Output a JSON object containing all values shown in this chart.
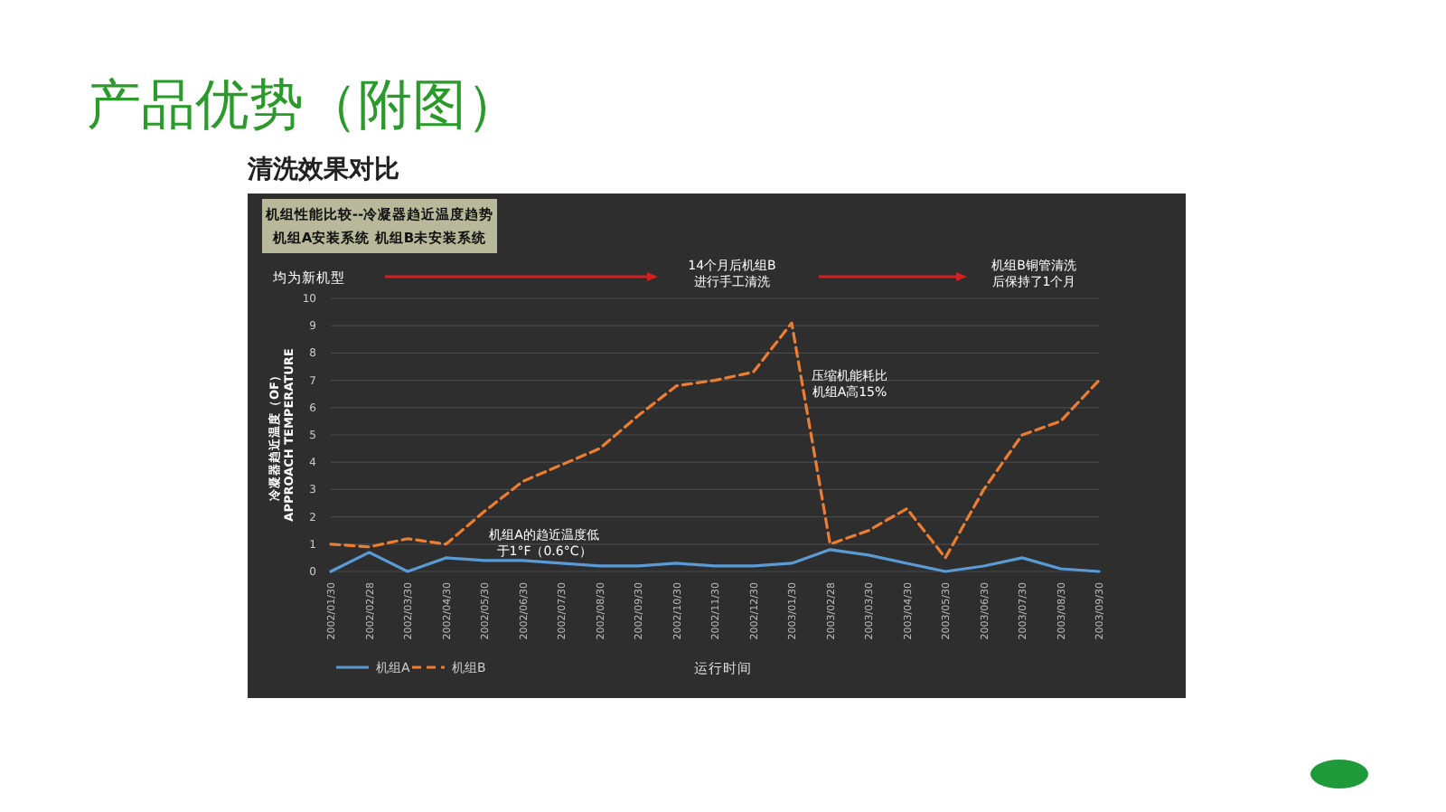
{
  "chart_data": {
    "type": "line",
    "title": "产品优势（附图）",
    "subtitle": "清洗效果对比",
    "xlabel": "运行时间",
    "ylabel": "冷凝器趋近温度（OF）\nAPPROACH TEMPERATURE",
    "annotations": [
      "机组性能比较--冷凝器趋近温度趋势",
      "机组A安装系统  机组B未安装系统",
      "均为新机型",
      "14个月后机组B进行手工清洗",
      "机组B铜管清洗后保持了1个月",
      "压缩机能耗比机组A高15%",
      "机组A的趋近温度低于1°F（0.6°C）"
    ],
    "categories": [
      "2002/01/30",
      "2002/02/28",
      "2002/03/30",
      "2002/04/30",
      "2002/05/30",
      "2002/06/30",
      "2002/07/30",
      "2002/08/30",
      "2002/09/30",
      "2002/10/30",
      "2002/11/30",
      "2002/12/30",
      "2003/01/30",
      "2003/02/28",
      "2003/03/30",
      "2003/04/30",
      "2003/05/30",
      "2003/06/30",
      "2003/07/30",
      "2003/08/30",
      "2003/09/30"
    ],
    "series": [
      {
        "name": "机组A",
        "color": "#5b9bd5",
        "line_style": "solid",
        "values": [
          0,
          0.7,
          0,
          0.5,
          0.4,
          0.4,
          0.3,
          0.2,
          0.2,
          0.3,
          0.2,
          0.2,
          0.3,
          0.8,
          0.6,
          0.3,
          0,
          0.2,
          0.5,
          0.1,
          0
        ]
      },
      {
        "name": "机组B",
        "color": "#ed7d31",
        "line_style": "dashed",
        "values": [
          1,
          0.9,
          1.2,
          1,
          2.2,
          3.3,
          3.9,
          4.5,
          5.7,
          6.8,
          7.0,
          7.3,
          9.1,
          1.0,
          1.5,
          2.3,
          0.5,
          3.0,
          5.0,
          5.5,
          7.0
        ]
      }
    ],
    "ylim": [
      0,
      10
    ],
    "yticks": [
      0,
      1,
      2,
      3,
      4,
      5,
      6,
      7,
      8,
      9,
      10
    ],
    "grid": "y",
    "legend": "bottom left",
    "marker": "none"
  }
}
